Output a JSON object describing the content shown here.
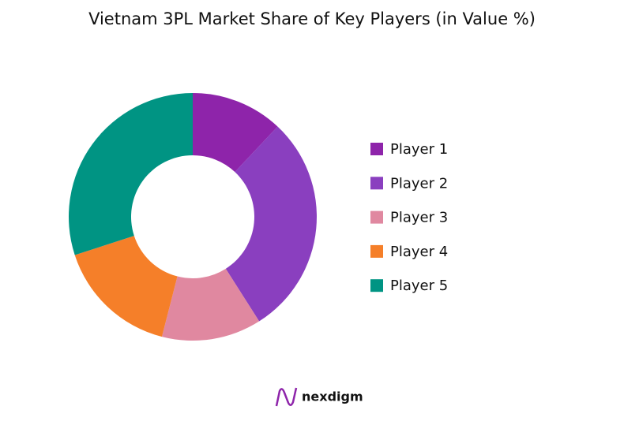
{
  "chart_data": {
    "type": "donut",
    "title": "Vietnam 3PL Market Share of Key Players (in Value %)",
    "categories": [
      "Player 1",
      "Player 2",
      "Player 3",
      "Player 4",
      "Player 5"
    ],
    "values": [
      12,
      29,
      13,
      16,
      30
    ],
    "colors": [
      "#8e24aa",
      "#8a3fbf",
      "#e088a0",
      "#f57f29",
      "#009483"
    ],
    "legend": "right",
    "watermark": "nexdigm"
  }
}
